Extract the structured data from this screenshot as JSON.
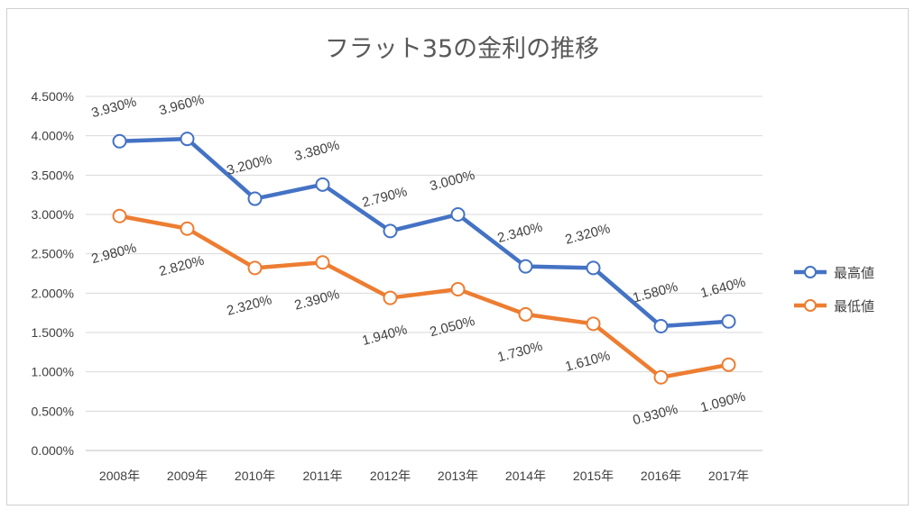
{
  "chart_data": {
    "type": "line",
    "title": "フラット35の金利の推移",
    "categories": [
      "2008年",
      "2009年",
      "2010年",
      "2011年",
      "2012年",
      "2013年",
      "2014年",
      "2015年",
      "2016年",
      "2017年"
    ],
    "ylim": [
      0,
      4.5
    ],
    "y_ticks": [
      "0.000%",
      "0.500%",
      "1.000%",
      "1.500%",
      "2.000%",
      "2.500%",
      "3.000%",
      "3.500%",
      "4.000%",
      "4.500%"
    ],
    "grid": true,
    "legend_position": "right",
    "series": [
      {
        "name": "最高値",
        "color": "#4472c4",
        "values": [
          3.93,
          3.96,
          3.2,
          3.38,
          2.79,
          3.0,
          2.34,
          2.32,
          1.58,
          1.64
        ],
        "labels": [
          "3.930%",
          "3.960%",
          "3.200%",
          "3.380%",
          "2.790%",
          "3.000%",
          "2.340%",
          "2.320%",
          "1.580%",
          "1.640%"
        ]
      },
      {
        "name": "最低値",
        "color": "#ed7d31",
        "values": [
          2.98,
          2.82,
          2.32,
          2.39,
          1.94,
          2.05,
          1.73,
          1.61,
          0.93,
          1.09
        ],
        "labels": [
          "2.980%",
          "2.820%",
          "2.320%",
          "2.390%",
          "1.940%",
          "2.050%",
          "1.730%",
          "1.610%",
          "0.930%",
          "1.090%"
        ]
      }
    ]
  }
}
